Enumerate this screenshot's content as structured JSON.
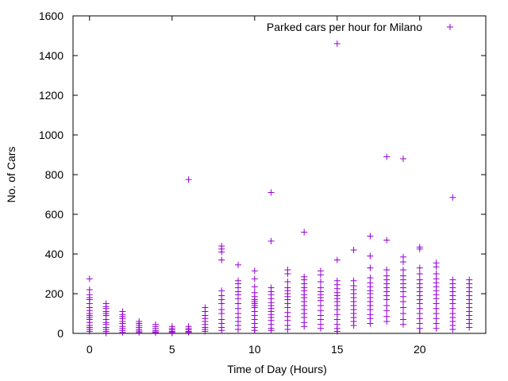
{
  "chart_data": {
    "type": "scatter",
    "xlabel": "Time of Day (Hours)",
    "ylabel": "No. of Cars",
    "xlim": [
      -1,
      24
    ],
    "ylim": [
      0,
      1600
    ],
    "x_ticks": [
      0,
      5,
      10,
      15,
      20
    ],
    "y_ticks": [
      0,
      200,
      400,
      600,
      800,
      1000,
      1200,
      1400,
      1600
    ],
    "grid": false,
    "legend_position": "top-right",
    "marker": "plus",
    "series": [
      {
        "name": "Parked cars per hour for Milano",
        "color": "#9400d3",
        "points": [
          [
            0,
            275
          ],
          [
            0,
            220
          ],
          [
            0,
            195
          ],
          [
            0,
            180
          ],
          [
            0,
            170
          ],
          [
            0,
            150
          ],
          [
            0,
            130
          ],
          [
            0,
            115
          ],
          [
            0,
            100
          ],
          [
            0,
            90
          ],
          [
            0,
            80
          ],
          [
            0,
            70
          ],
          [
            0,
            55
          ],
          [
            0,
            40
          ],
          [
            0,
            30
          ],
          [
            0,
            20
          ],
          [
            0,
            10
          ],
          [
            1,
            150
          ],
          [
            1,
            135
          ],
          [
            1,
            125
          ],
          [
            1,
            110
          ],
          [
            1,
            100
          ],
          [
            1,
            90
          ],
          [
            1,
            70
          ],
          [
            1,
            55
          ],
          [
            1,
            45
          ],
          [
            1,
            30
          ],
          [
            1,
            20
          ],
          [
            1,
            10
          ],
          [
            1,
            2
          ],
          [
            2,
            110
          ],
          [
            2,
            95
          ],
          [
            2,
            85
          ],
          [
            2,
            75
          ],
          [
            2,
            60
          ],
          [
            2,
            50
          ],
          [
            2,
            35
          ],
          [
            2,
            25
          ],
          [
            2,
            15
          ],
          [
            2,
            5
          ],
          [
            3,
            60
          ],
          [
            3,
            50
          ],
          [
            3,
            40
          ],
          [
            3,
            30
          ],
          [
            3,
            20
          ],
          [
            3,
            12
          ],
          [
            3,
            5
          ],
          [
            4,
            45
          ],
          [
            4,
            35
          ],
          [
            4,
            25
          ],
          [
            4,
            15
          ],
          [
            4,
            8
          ],
          [
            4,
            3
          ],
          [
            5,
            35
          ],
          [
            5,
            25
          ],
          [
            5,
            18
          ],
          [
            5,
            10
          ],
          [
            5,
            5
          ],
          [
            5,
            2
          ],
          [
            6,
            775
          ],
          [
            6,
            35
          ],
          [
            6,
            25
          ],
          [
            6,
            18
          ],
          [
            6,
            10
          ],
          [
            6,
            5
          ],
          [
            7,
            130
          ],
          [
            7,
            110
          ],
          [
            7,
            90
          ],
          [
            7,
            75
          ],
          [
            7,
            60
          ],
          [
            7,
            45
          ],
          [
            7,
            30
          ],
          [
            7,
            20
          ],
          [
            7,
            10
          ],
          [
            8,
            440
          ],
          [
            8,
            425
          ],
          [
            8,
            410
          ],
          [
            8,
            370
          ],
          [
            8,
            215
          ],
          [
            8,
            190
          ],
          [
            8,
            170
          ],
          [
            8,
            150
          ],
          [
            8,
            120
          ],
          [
            8,
            100
          ],
          [
            8,
            70
          ],
          [
            8,
            50
          ],
          [
            8,
            30
          ],
          [
            8,
            15
          ],
          [
            9,
            345
          ],
          [
            9,
            265
          ],
          [
            9,
            250
          ],
          [
            9,
            230
          ],
          [
            9,
            210
          ],
          [
            9,
            195
          ],
          [
            9,
            175
          ],
          [
            9,
            150
          ],
          [
            9,
            125
          ],
          [
            9,
            100
          ],
          [
            9,
            80
          ],
          [
            9,
            60
          ],
          [
            9,
            40
          ],
          [
            9,
            20
          ],
          [
            10,
            315
          ],
          [
            10,
            275
          ],
          [
            10,
            235
          ],
          [
            10,
            205
          ],
          [
            10,
            185
          ],
          [
            10,
            170
          ],
          [
            10,
            160
          ],
          [
            10,
            150
          ],
          [
            10,
            140
          ],
          [
            10,
            130
          ],
          [
            10,
            110
          ],
          [
            10,
            90
          ],
          [
            10,
            70
          ],
          [
            10,
            50
          ],
          [
            10,
            30
          ],
          [
            10,
            15
          ],
          [
            11,
            710
          ],
          [
            11,
            465
          ],
          [
            11,
            230
          ],
          [
            11,
            210
          ],
          [
            11,
            195
          ],
          [
            11,
            175
          ],
          [
            11,
            155
          ],
          [
            11,
            140
          ],
          [
            11,
            125
          ],
          [
            11,
            110
          ],
          [
            11,
            95
          ],
          [
            11,
            80
          ],
          [
            11,
            65
          ],
          [
            11,
            45
          ],
          [
            11,
            25
          ],
          [
            11,
            15
          ],
          [
            12,
            320
          ],
          [
            12,
            300
          ],
          [
            12,
            260
          ],
          [
            12,
            230
          ],
          [
            12,
            215
          ],
          [
            12,
            200
          ],
          [
            12,
            185
          ],
          [
            12,
            170
          ],
          [
            12,
            150
          ],
          [
            12,
            130
          ],
          [
            12,
            105
          ],
          [
            12,
            85
          ],
          [
            12,
            65
          ],
          [
            12,
            40
          ],
          [
            12,
            20
          ],
          [
            13,
            510
          ],
          [
            13,
            285
          ],
          [
            13,
            270
          ],
          [
            13,
            250
          ],
          [
            13,
            230
          ],
          [
            13,
            215
          ],
          [
            13,
            195
          ],
          [
            13,
            180
          ],
          [
            13,
            160
          ],
          [
            13,
            140
          ],
          [
            13,
            120
          ],
          [
            13,
            100
          ],
          [
            13,
            80
          ],
          [
            13,
            55
          ],
          [
            13,
            35
          ],
          [
            14,
            315
          ],
          [
            14,
            295
          ],
          [
            14,
            260
          ],
          [
            14,
            230
          ],
          [
            14,
            210
          ],
          [
            14,
            195
          ],
          [
            14,
            180
          ],
          [
            14,
            165
          ],
          [
            14,
            140
          ],
          [
            14,
            115
          ],
          [
            14,
            90
          ],
          [
            14,
            70
          ],
          [
            14,
            45
          ],
          [
            14,
            25
          ],
          [
            15,
            1460
          ],
          [
            15,
            370
          ],
          [
            15,
            265
          ],
          [
            15,
            245
          ],
          [
            15,
            225
          ],
          [
            15,
            205
          ],
          [
            15,
            190
          ],
          [
            15,
            175
          ],
          [
            15,
            160
          ],
          [
            15,
            140
          ],
          [
            15,
            120
          ],
          [
            15,
            95
          ],
          [
            15,
            70
          ],
          [
            15,
            45
          ],
          [
            15,
            25
          ],
          [
            15,
            10
          ],
          [
            16,
            420
          ],
          [
            16,
            265
          ],
          [
            16,
            240
          ],
          [
            16,
            220
          ],
          [
            16,
            200
          ],
          [
            16,
            180
          ],
          [
            16,
            160
          ],
          [
            16,
            140
          ],
          [
            16,
            120
          ],
          [
            16,
            100
          ],
          [
            16,
            80
          ],
          [
            16,
            60
          ],
          [
            16,
            40
          ],
          [
            17,
            490
          ],
          [
            17,
            390
          ],
          [
            17,
            330
          ],
          [
            17,
            280
          ],
          [
            17,
            255
          ],
          [
            17,
            235
          ],
          [
            17,
            215
          ],
          [
            17,
            200
          ],
          [
            17,
            180
          ],
          [
            17,
            160
          ],
          [
            17,
            140
          ],
          [
            17,
            120
          ],
          [
            17,
            95
          ],
          [
            17,
            75
          ],
          [
            17,
            50
          ],
          [
            18,
            890
          ],
          [
            18,
            470
          ],
          [
            18,
            320
          ],
          [
            18,
            290
          ],
          [
            18,
            270
          ],
          [
            18,
            250
          ],
          [
            18,
            230
          ],
          [
            18,
            210
          ],
          [
            18,
            190
          ],
          [
            18,
            170
          ],
          [
            18,
            140
          ],
          [
            18,
            115
          ],
          [
            18,
            85
          ],
          [
            18,
            60
          ],
          [
            19,
            880
          ],
          [
            19,
            385
          ],
          [
            19,
            360
          ],
          [
            19,
            320
          ],
          [
            19,
            290
          ],
          [
            19,
            270
          ],
          [
            19,
            250
          ],
          [
            19,
            230
          ],
          [
            19,
            210
          ],
          [
            19,
            185
          ],
          [
            19,
            160
          ],
          [
            19,
            130
          ],
          [
            19,
            100
          ],
          [
            19,
            70
          ],
          [
            19,
            45
          ],
          [
            20,
            435
          ],
          [
            20,
            425
          ],
          [
            20,
            330
          ],
          [
            20,
            300
          ],
          [
            20,
            270
          ],
          [
            20,
            250
          ],
          [
            20,
            230
          ],
          [
            20,
            210
          ],
          [
            20,
            190
          ],
          [
            20,
            170
          ],
          [
            20,
            150
          ],
          [
            20,
            125
          ],
          [
            20,
            100
          ],
          [
            20,
            75
          ],
          [
            20,
            50
          ],
          [
            20,
            25
          ],
          [
            21,
            355
          ],
          [
            21,
            335
          ],
          [
            21,
            300
          ],
          [
            21,
            275
          ],
          [
            21,
            255
          ],
          [
            21,
            235
          ],
          [
            21,
            215
          ],
          [
            21,
            195
          ],
          [
            21,
            175
          ],
          [
            21,
            150
          ],
          [
            21,
            125
          ],
          [
            21,
            100
          ],
          [
            21,
            75
          ],
          [
            21,
            50
          ],
          [
            21,
            25
          ],
          [
            22,
            685
          ],
          [
            22,
            270
          ],
          [
            22,
            250
          ],
          [
            22,
            230
          ],
          [
            22,
            210
          ],
          [
            22,
            190
          ],
          [
            22,
            170
          ],
          [
            22,
            150
          ],
          [
            22,
            125
          ],
          [
            22,
            100
          ],
          [
            22,
            80
          ],
          [
            22,
            60
          ],
          [
            22,
            40
          ],
          [
            22,
            20
          ],
          [
            23,
            270
          ],
          [
            23,
            250
          ],
          [
            23,
            230
          ],
          [
            23,
            210
          ],
          [
            23,
            190
          ],
          [
            23,
            170
          ],
          [
            23,
            150
          ],
          [
            23,
            130
          ],
          [
            23,
            110
          ],
          [
            23,
            90
          ],
          [
            23,
            70
          ],
          [
            23,
            50
          ],
          [
            23,
            30
          ]
        ]
      }
    ]
  }
}
